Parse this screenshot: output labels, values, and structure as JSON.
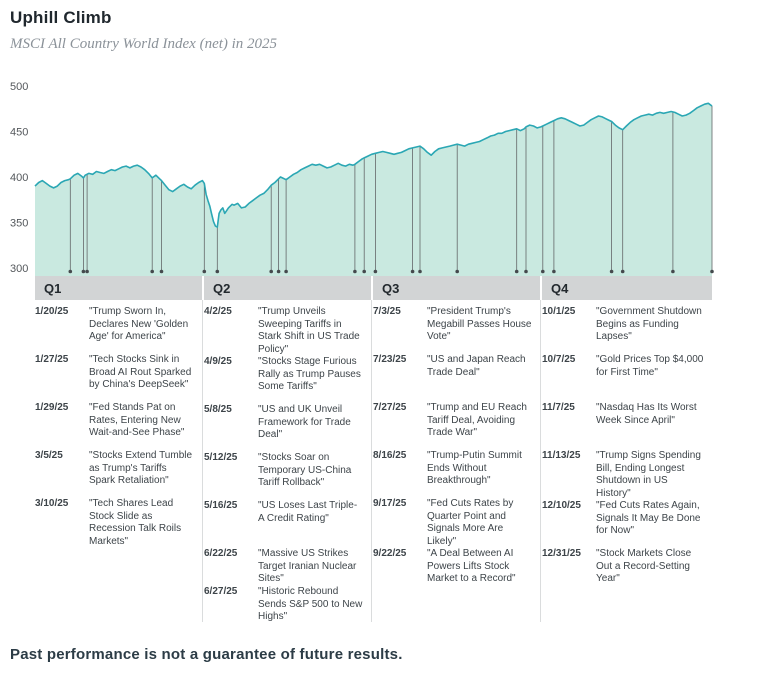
{
  "header": {
    "title": "Uphill Climb",
    "subtitle": "MSCI All Country World Index (net) in 2025"
  },
  "footer": {
    "disclaimer": "Past performance is not a guarantee of future results."
  },
  "chart_data": {
    "type": "area",
    "title": "Uphill Climb",
    "subtitle": "MSCI All Country World Index (net) in 2025",
    "xlabel": "",
    "ylabel": "",
    "x_unit": "day-of-year 2025",
    "x_sections": [
      "Q1",
      "Q2",
      "Q3",
      "Q4"
    ],
    "ylim": [
      300,
      500
    ],
    "yticks": [
      500,
      450,
      400,
      350,
      300
    ],
    "grid": false,
    "legend": "none",
    "line_color": "#2ba7b4",
    "fill_color": "#c9e9e0",
    "marker_color": "#636769",
    "series": [
      {
        "name": "MSCI All Country World Index (net)",
        "points": [
          [
            1,
            390
          ],
          [
            3,
            394
          ],
          [
            5,
            396
          ],
          [
            7,
            393
          ],
          [
            9,
            390
          ],
          [
            11,
            388
          ],
          [
            13,
            390
          ],
          [
            15,
            394
          ],
          [
            17,
            396
          ],
          [
            19,
            397
          ],
          [
            20,
            398
          ],
          [
            22,
            402
          ],
          [
            24,
            404
          ],
          [
            26,
            401
          ],
          [
            27,
            399
          ],
          [
            28,
            402
          ],
          [
            30,
            404
          ],
          [
            32,
            403
          ],
          [
            34,
            406
          ],
          [
            36,
            405
          ],
          [
            38,
            404
          ],
          [
            40,
            406
          ],
          [
            42,
            408
          ],
          [
            44,
            407
          ],
          [
            46,
            409
          ],
          [
            48,
            411
          ],
          [
            50,
            412
          ],
          [
            52,
            410
          ],
          [
            54,
            412
          ],
          [
            56,
            413
          ],
          [
            58,
            411
          ],
          [
            60,
            408
          ],
          [
            62,
            404
          ],
          [
            64,
            399
          ],
          [
            66,
            402
          ],
          [
            68,
            398
          ],
          [
            69,
            396
          ],
          [
            71,
            391
          ],
          [
            73,
            386
          ],
          [
            75,
            384
          ],
          [
            77,
            387
          ],
          [
            79,
            390
          ],
          [
            81,
            392
          ],
          [
            83,
            389
          ],
          [
            85,
            387
          ],
          [
            87,
            391
          ],
          [
            89,
            394
          ],
          [
            91,
            396
          ],
          [
            92,
            393
          ],
          [
            93,
            381
          ],
          [
            94,
            374
          ],
          [
            95,
            368
          ],
          [
            96,
            359
          ],
          [
            97,
            351
          ],
          [
            98,
            346
          ],
          [
            99,
            345
          ],
          [
            100,
            360
          ],
          [
            101,
            364
          ],
          [
            102,
            366
          ],
          [
            103,
            360
          ],
          [
            104,
            363
          ],
          [
            105,
            366
          ],
          [
            106,
            368
          ],
          [
            107,
            370
          ],
          [
            108,
            369
          ],
          [
            110,
            371
          ],
          [
            112,
            366
          ],
          [
            114,
            367
          ],
          [
            116,
            371
          ],
          [
            118,
            374
          ],
          [
            120,
            377
          ],
          [
            122,
            380
          ],
          [
            124,
            382
          ],
          [
            126,
            386
          ],
          [
            128,
            391
          ],
          [
            130,
            394
          ],
          [
            132,
            398
          ],
          [
            133,
            400
          ],
          [
            134,
            399
          ],
          [
            136,
            397
          ],
          [
            138,
            400
          ],
          [
            140,
            403
          ],
          [
            142,
            405
          ],
          [
            144,
            408
          ],
          [
            146,
            410
          ],
          [
            148,
            412
          ],
          [
            150,
            414
          ],
          [
            152,
            413
          ],
          [
            154,
            414
          ],
          [
            156,
            412
          ],
          [
            158,
            410
          ],
          [
            160,
            411
          ],
          [
            162,
            413
          ],
          [
            164,
            415
          ],
          [
            166,
            413
          ],
          [
            168,
            412
          ],
          [
            170,
            414
          ],
          [
            172,
            413
          ],
          [
            173,
            414
          ],
          [
            175,
            417
          ],
          [
            177,
            420
          ],
          [
            178,
            421
          ],
          [
            180,
            423
          ],
          [
            182,
            425
          ],
          [
            184,
            426
          ],
          [
            186,
            427
          ],
          [
            188,
            428
          ],
          [
            190,
            427
          ],
          [
            192,
            426
          ],
          [
            194,
            425
          ],
          [
            196,
            426
          ],
          [
            198,
            427
          ],
          [
            200,
            429
          ],
          [
            202,
            431
          ],
          [
            204,
            432
          ],
          [
            206,
            433
          ],
          [
            208,
            434
          ],
          [
            210,
            431
          ],
          [
            212,
            427
          ],
          [
            214,
            424
          ],
          [
            216,
            428
          ],
          [
            218,
            431
          ],
          [
            220,
            432
          ],
          [
            222,
            433
          ],
          [
            224,
            434
          ],
          [
            226,
            435
          ],
          [
            228,
            436
          ],
          [
            230,
            435
          ],
          [
            232,
            434
          ],
          [
            234,
            436
          ],
          [
            236,
            437
          ],
          [
            238,
            438
          ],
          [
            240,
            439
          ],
          [
            242,
            441
          ],
          [
            244,
            443
          ],
          [
            246,
            445
          ],
          [
            248,
            446
          ],
          [
            250,
            448
          ],
          [
            252,
            448
          ],
          [
            254,
            450
          ],
          [
            256,
            451
          ],
          [
            258,
            452
          ],
          [
            260,
            453
          ],
          [
            262,
            451
          ],
          [
            264,
            453
          ],
          [
            265,
            455
          ],
          [
            267,
            457
          ],
          [
            269,
            456
          ],
          [
            271,
            454
          ],
          [
            273,
            455
          ],
          [
            274,
            456
          ],
          [
            276,
            458
          ],
          [
            278,
            460
          ],
          [
            280,
            462
          ],
          [
            282,
            464
          ],
          [
            284,
            465
          ],
          [
            286,
            464
          ],
          [
            288,
            462
          ],
          [
            290,
            460
          ],
          [
            292,
            458
          ],
          [
            294,
            456
          ],
          [
            296,
            457
          ],
          [
            298,
            460
          ],
          [
            300,
            463
          ],
          [
            302,
            465
          ],
          [
            304,
            467
          ],
          [
            306,
            466
          ],
          [
            308,
            464
          ],
          [
            310,
            462
          ],
          [
            311,
            461
          ],
          [
            313,
            457
          ],
          [
            315,
            454
          ],
          [
            317,
            452
          ],
          [
            319,
            456
          ],
          [
            321,
            460
          ],
          [
            323,
            463
          ],
          [
            325,
            465
          ],
          [
            327,
            467
          ],
          [
            329,
            468
          ],
          [
            331,
            469
          ],
          [
            333,
            468
          ],
          [
            335,
            470
          ],
          [
            337,
            471
          ],
          [
            339,
            470
          ],
          [
            341,
            471
          ],
          [
            343,
            472
          ],
          [
            345,
            471
          ],
          [
            347,
            469
          ],
          [
            349,
            467
          ],
          [
            351,
            468
          ],
          [
            353,
            470
          ],
          [
            355,
            473
          ],
          [
            357,
            476
          ],
          [
            359,
            478
          ],
          [
            361,
            480
          ],
          [
            363,
            481
          ],
          [
            365,
            478
          ]
        ]
      }
    ]
  },
  "quarters": [
    {
      "label": "Q1",
      "events": [
        {
          "date": "1/20/25",
          "day": 20,
          "quote": "\"Trump Sworn In, Declares New 'Golden Age' for America\""
        },
        {
          "date": "1/27/25",
          "day": 27,
          "quote": "\"Tech Stocks Sink in Broad AI Rout Sparked by China's DeepSeek\""
        },
        {
          "date": "1/29/25",
          "day": 29,
          "quote": "\"Fed Stands Pat on Rates, Entering New Wait-and-See Phase\""
        },
        {
          "date": "3/5/25",
          "day": 64,
          "quote": "\"Stocks Extend Tumble as Trump's Tariffs Spark Retaliation\""
        },
        {
          "date": "3/10/25",
          "day": 69,
          "quote": "\"Tech Shares Lead Stock Slide as Recession Talk Roils Markets\""
        }
      ]
    },
    {
      "label": "Q2",
      "events": [
        {
          "date": "4/2/25",
          "day": 92,
          "quote": "\"Trump Unveils Sweeping Tariffs in Stark Shift in US Trade Policy\""
        },
        {
          "date": "4/9/25",
          "day": 99,
          "quote": "\"Stocks Stage Furious Rally as Trump Pauses Some Tariffs\""
        },
        {
          "date": "5/8/25",
          "day": 128,
          "quote": "\"US and UK Unveil Framework for Trade Deal\""
        },
        {
          "date": "5/12/25",
          "day": 132,
          "quote": "\"Stocks Soar on Temporary US-China Tariff Rollback\""
        },
        {
          "date": "5/16/25",
          "day": 136,
          "quote": "\"US Loses Last Triple-A Credit Rating\""
        },
        {
          "date": "6/22/25",
          "day": 173,
          "quote": "\"Massive US Strikes Target Iranian Nuclear Sites\""
        },
        {
          "date": "6/27/25",
          "day": 178,
          "quote": "\"Historic Rebound Sends S&P 500 to New Highs\""
        }
      ]
    },
    {
      "label": "Q3",
      "events": [
        {
          "date": "7/3/25",
          "day": 184,
          "quote": "\"President Trump's Megabill Passes House Vote\""
        },
        {
          "date": "7/23/25",
          "day": 204,
          "quote": "\"US and Japan Reach Trade Deal\""
        },
        {
          "date": "7/27/25",
          "day": 208,
          "quote": "\"Trump and EU Reach Tariff Deal, Avoiding Trade War\""
        },
        {
          "date": "8/16/25",
          "day": 228,
          "quote": "\"Trump-Putin Summit Ends Without Breakthrough\""
        },
        {
          "date": "9/17/25",
          "day": 260,
          "quote": "\"Fed Cuts Rates by Quarter Point and Signals More Are Likely\""
        },
        {
          "date": "9/22/25",
          "day": 265,
          "quote": "\"A Deal Between AI Powers Lifts Stock Market to a Record\""
        }
      ]
    },
    {
      "label": "Q4",
      "events": [
        {
          "date": "10/1/25",
          "day": 274,
          "quote": "\"Government Shutdown Begins as Funding Lapses\""
        },
        {
          "date": "10/7/25",
          "day": 280,
          "quote": "\"Gold Prices Top $4,000 for First Time\""
        },
        {
          "date": "11/7/25",
          "day": 311,
          "quote": "\"Nasdaq Has Its Worst Week Since April\""
        },
        {
          "date": "11/13/25",
          "day": 317,
          "quote": "\"Trump Signs Spending Bill, Ending Longest Shutdown in US History\""
        },
        {
          "date": "12/10/25",
          "day": 344,
          "quote": "\"Fed Cuts Rates Again, Signals It May Be Done for Now\""
        },
        {
          "date": "12/31/25",
          "day": 365,
          "quote": "\"Stock Markets Close Out a Record-Setting Year\""
        }
      ]
    }
  ]
}
